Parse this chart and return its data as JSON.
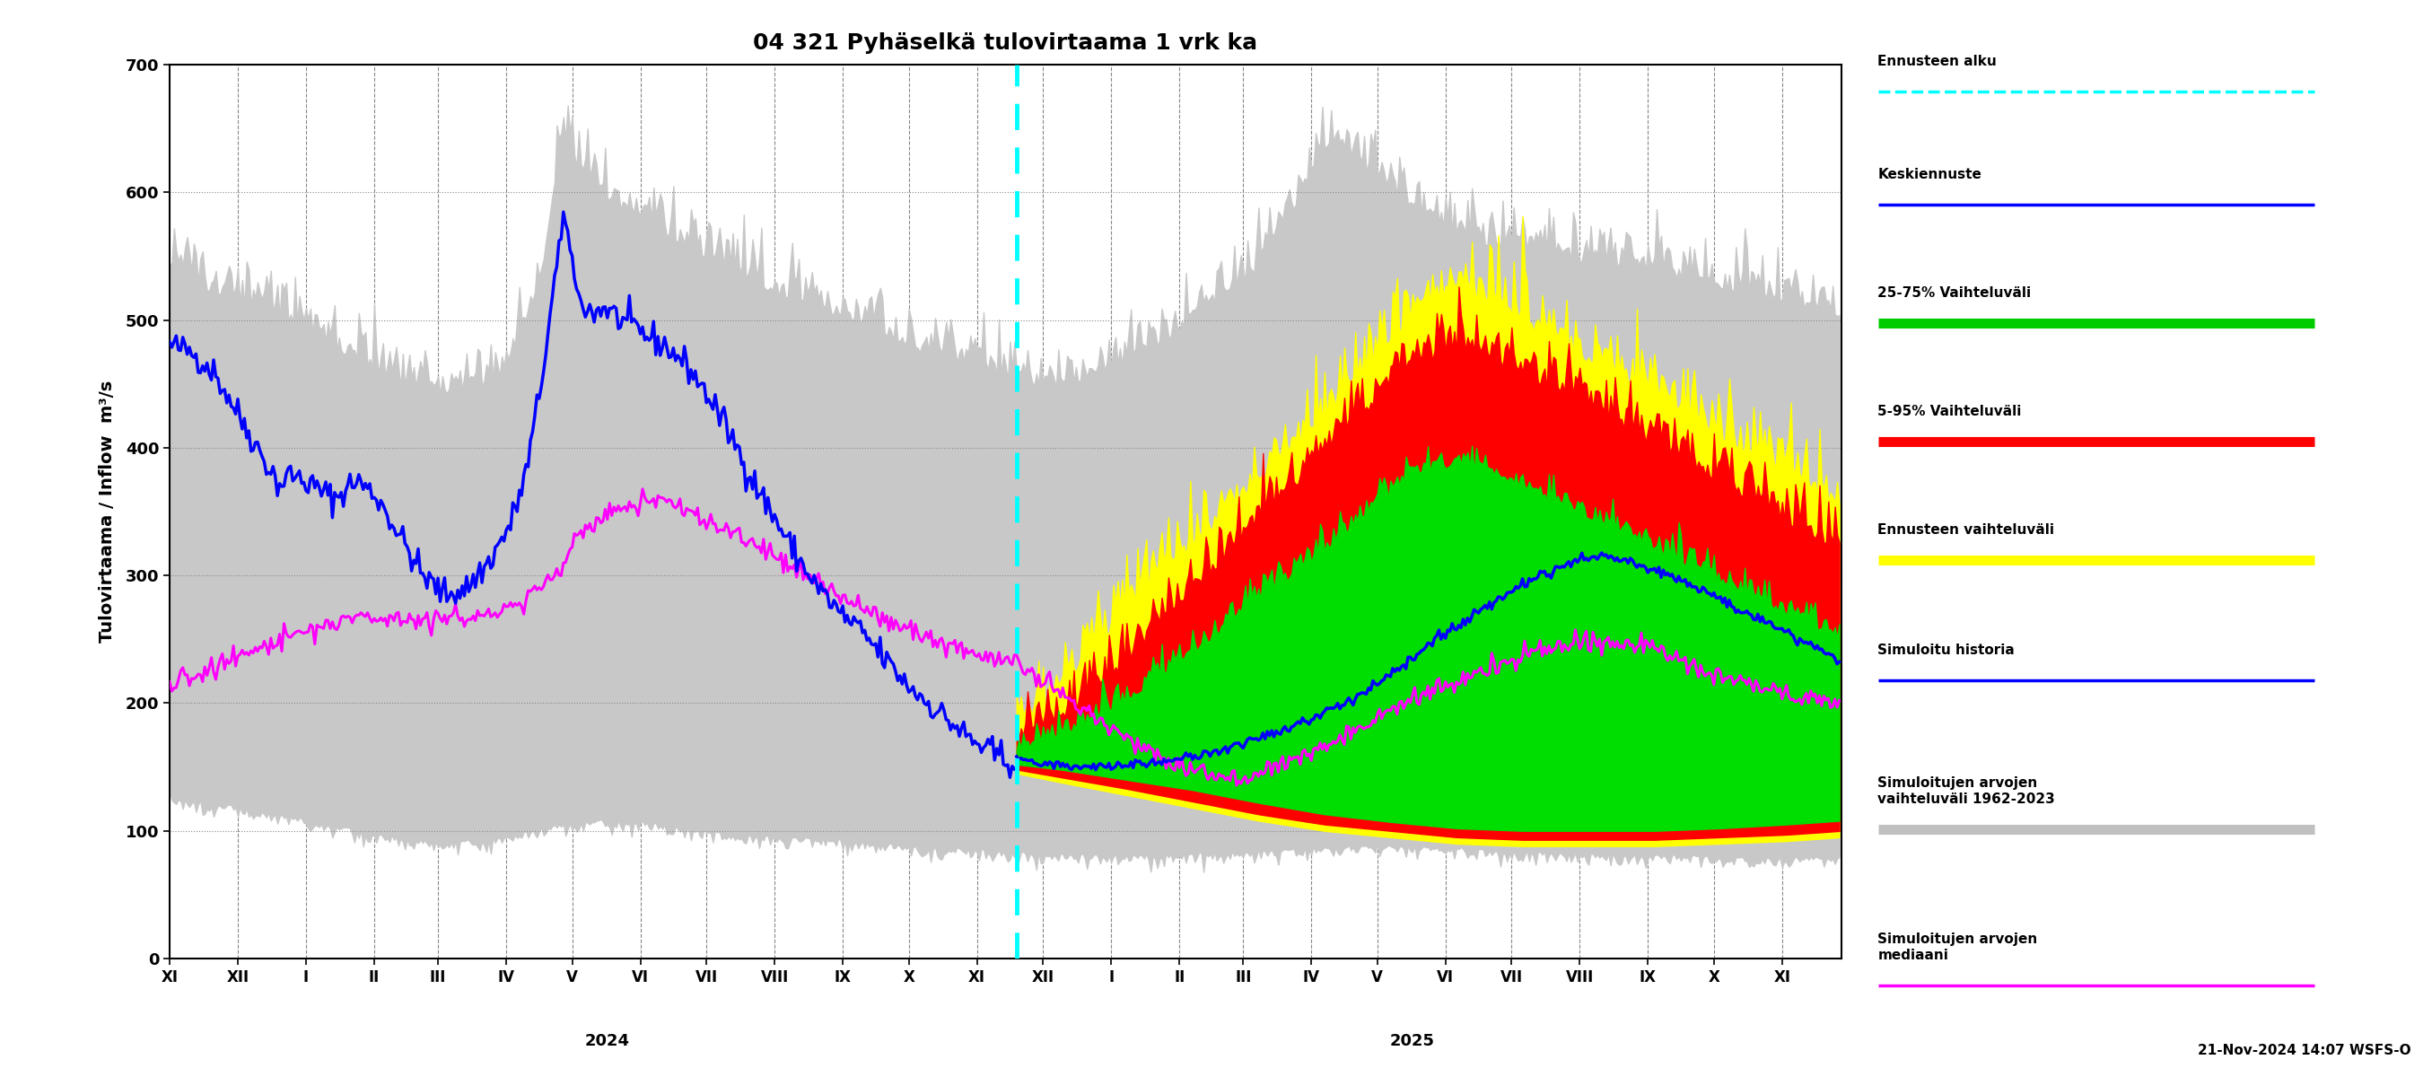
{
  "title": "04 321 Pyhäselkä tulovirtaama 1 vrk ka",
  "ylabel_left": "Tulovirtaama / Inflow  m³/s",
  "ylim": [
    0,
    700
  ],
  "yticks": [
    0,
    100,
    200,
    300,
    400,
    500,
    600,
    700
  ],
  "xlabel_months": [
    "XI",
    "XII",
    "I",
    "II",
    "III",
    "IV",
    "V",
    "VI",
    "VII",
    "VIII",
    "IX",
    "X",
    "XI",
    "XII",
    "I",
    "II",
    "III",
    "IV",
    "V",
    "VI",
    "VII",
    "VIII",
    "IX",
    "X",
    "XI"
  ],
  "timestamp_label": "21-Nov-2024 14:07 WSFS-O",
  "background_color": "#ffffff",
  "n_total": 760,
  "n_hist": 385,
  "month_days": [
    31,
    31,
    31,
    29,
    31,
    30,
    31,
    30,
    31,
    31,
    30,
    31,
    30,
    31,
    31,
    29,
    31,
    30,
    31,
    30,
    31,
    31,
    30,
    31,
    30
  ],
  "legend_labels": [
    "Ennusteen alku",
    "Keskiennuste",
    "25-75% Vaihteluväli",
    "5-95% Vaihteluväli",
    "Ennusteen vaihteluväli",
    "Simuloitu historia",
    "Simuloitujen arvojen\nvaihteluväli 1962-2023",
    "Simuloitujen arvojen\nmediaani"
  ],
  "legend_colors": [
    "#00ffff",
    "#0000ff",
    "#00cc00",
    "#ff0000",
    "#ffff00",
    "#0000ff",
    "#c0c0c0",
    "#ff00ff"
  ],
  "legend_linestyles": [
    "--",
    "-",
    "-",
    "-",
    "-",
    "-",
    "-",
    "-"
  ],
  "legend_linewidths": [
    2.5,
    2.5,
    8,
    8,
    8,
    2.5,
    8,
    2.5
  ]
}
